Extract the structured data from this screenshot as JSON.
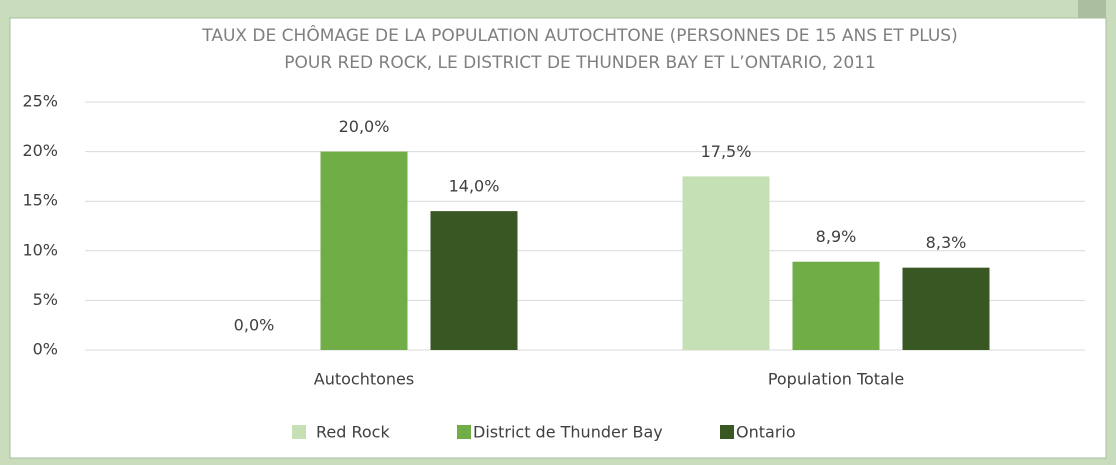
{
  "chart_data": {
    "type": "bar",
    "title": "TAUX DE CHÔMAGE DE LA POPULATION AUTOCHTONE (PERSONNES DE 15 ANS ET PLUS)",
    "subtitle": "POUR RED ROCK, LE DISTRICT DE THUNDER BAY ET L’ONTARIO, 2011",
    "categories": [
      "Autochtones",
      "Population Totale"
    ],
    "series": [
      {
        "name": "Red Rock",
        "color": "#c5e0b4",
        "values": [
          0,
          17.5
        ],
        "value_labels": [
          "0,0%",
          "17,5%"
        ]
      },
      {
        "name": "District de Thunder Bay",
        "color": "#70ad47",
        "values": [
          20,
          8.9
        ],
        "value_labels": [
          "20,0%",
          "8,9%"
        ]
      },
      {
        "name": "Ontario",
        "color": "#385723",
        "values": [
          14,
          8.3
        ],
        "value_labels": [
          "14,0%",
          "8,3%"
        ]
      }
    ],
    "ylim": [
      0,
      25
    ],
    "yticks": [
      {
        "value": 0,
        "label": "0%"
      },
      {
        "value": 5,
        "label": "5%"
      },
      {
        "value": 10,
        "label": "10%"
      },
      {
        "value": 15,
        "label": "15%"
      },
      {
        "value": 20,
        "label": "20%"
      },
      {
        "value": 25,
        "label": "25%"
      }
    ],
    "grid": true,
    "legend": "bottom"
  }
}
